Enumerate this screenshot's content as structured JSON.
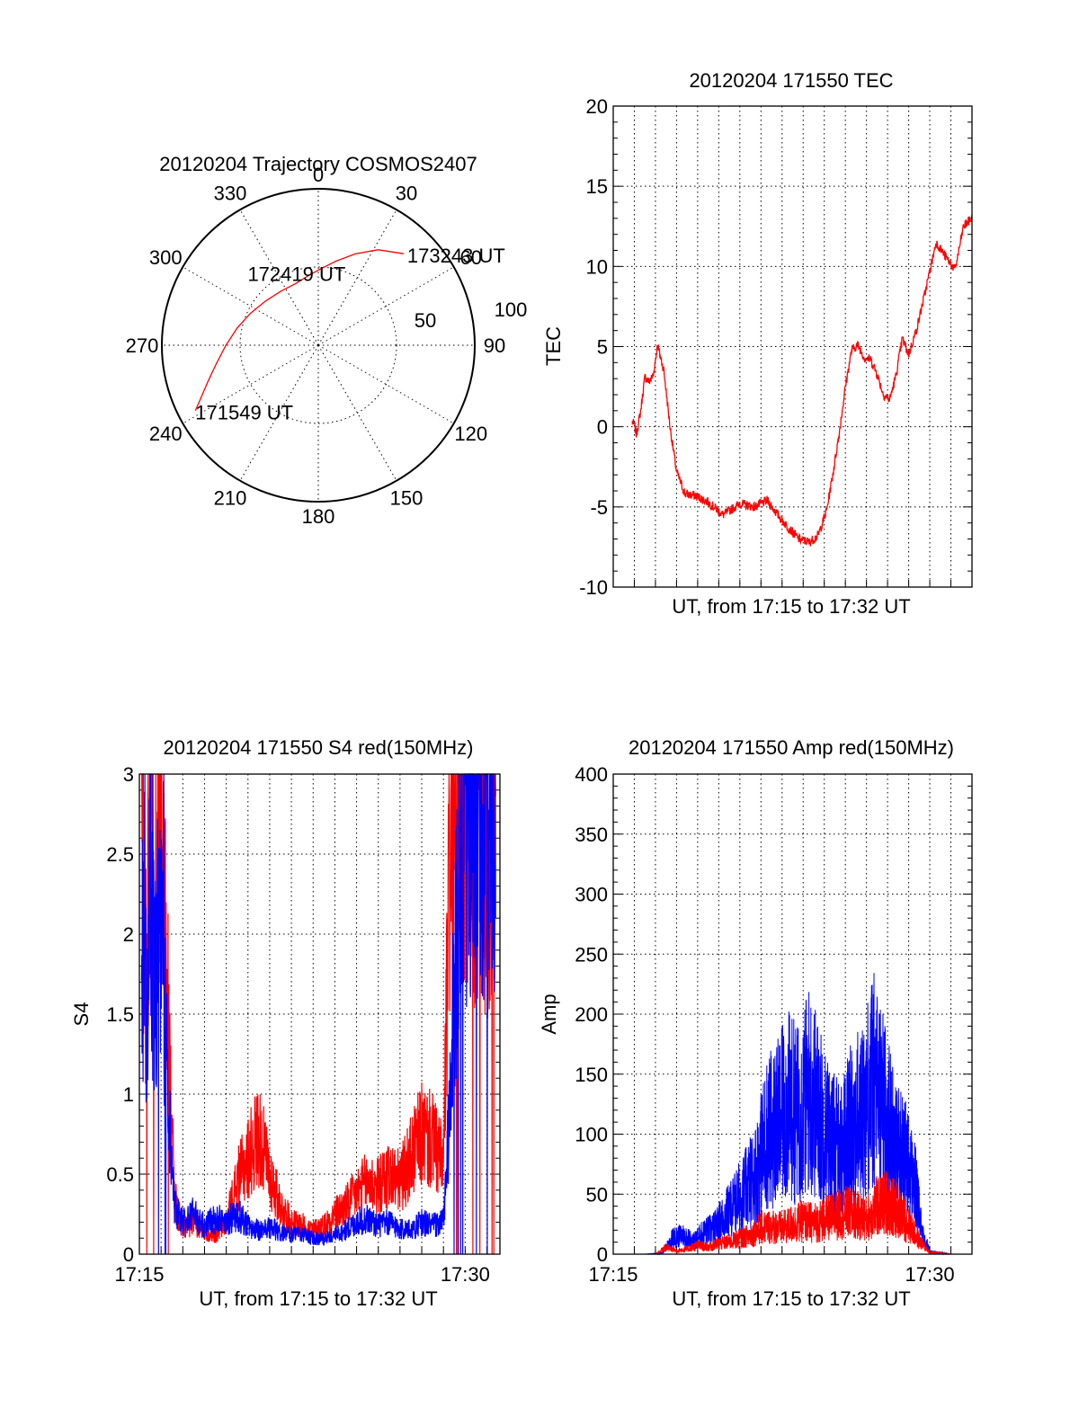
{
  "colors": {
    "red": "#ff0000",
    "blue": "#0000ff",
    "axis": "#000000"
  },
  "chart_data": [
    {
      "id": "trajectory",
      "type": "polar",
      "title": "20120204 Trajectory COSMOS2407",
      "azimuth_labels": [
        "0",
        "30",
        "60",
        "90",
        "120",
        "150",
        "180",
        "210",
        "240",
        "270",
        "300",
        "330"
      ],
      "radial_labels": [
        "50",
        "100"
      ],
      "radial_range": [
        0,
        100
      ],
      "grid": true,
      "trajectory": {
        "color": "#ff0000",
        "azimuth_deg": [
          242,
          246,
          252,
          260,
          270,
          282,
          295,
          310,
          325,
          340,
          352,
          2,
          12,
          22,
          32,
          43
        ],
        "radial": [
          89,
          82,
          74,
          66,
          59,
          53,
          48,
          44,
          42,
          42,
          45,
          49,
          55,
          63,
          72,
          80
        ]
      },
      "annotations": [
        {
          "text": "173243 UT",
          "azimuth_deg": 43,
          "radial": 80
        },
        {
          "text": "172419 UT",
          "azimuth_deg": 337,
          "radial": 42
        },
        {
          "text": "171549 UT",
          "azimuth_deg": 242,
          "radial": 89
        }
      ]
    },
    {
      "id": "tec",
      "type": "line",
      "title": "20120204 171550 TEC",
      "xlabel": "UT, from 17:15 to 17:32 UT",
      "ylabel": "TEC",
      "ylim": [
        -10,
        20
      ],
      "yticks": [
        -10,
        -5,
        0,
        5,
        10,
        15,
        20
      ],
      "xlim_minutes": [
        17.0,
        34.0
      ],
      "grid": true,
      "series": [
        {
          "color": "#ff0000",
          "x": [
            17.9,
            18.0,
            18.1,
            18.3,
            18.5,
            18.7,
            18.9,
            19.1,
            19.4,
            19.7,
            20.0,
            20.4,
            20.9,
            21.5,
            22.2,
            23.0,
            23.7,
            24.3,
            24.8,
            25.3,
            25.8,
            26.3,
            26.7,
            27.1,
            27.4,
            27.7,
            28.0,
            28.3,
            28.6,
            28.9,
            29.2,
            29.5,
            29.8,
            30.1,
            30.4,
            30.7,
            31.0,
            31.4,
            31.8,
            32.3,
            32.8,
            33.2,
            33.6,
            34.0
          ],
          "y": [
            0.3,
            0.1,
            -0.5,
            1.0,
            3.1,
            2.8,
            3.2,
            5.1,
            3.5,
            -0.1,
            -2.8,
            -4.2,
            -4.3,
            -4.7,
            -5.5,
            -4.8,
            -5.0,
            -4.6,
            -5.5,
            -6.3,
            -7.0,
            -7.2,
            -6.8,
            -5.3,
            -3.0,
            -0.5,
            2.5,
            4.8,
            5.1,
            4.3,
            4.2,
            3.3,
            2.0,
            1.7,
            3.2,
            5.5,
            4.5,
            6.2,
            8.5,
            11.5,
            10.5,
            9.8,
            12.5,
            13.0
          ]
        }
      ]
    },
    {
      "id": "s4",
      "type": "line",
      "title": "20120204 171550 S4 red(150MHz)",
      "xlabel": "UT, from 17:15 to 17:32 UT",
      "ylabel": "S4",
      "ylim": [
        0,
        3
      ],
      "yticks": [
        0,
        0.5,
        1,
        1.5,
        2,
        2.5,
        3
      ],
      "xlim_minutes": [
        15,
        31.6
      ],
      "xtick_labels": [
        {
          "minute": 15,
          "label": "17:15"
        },
        {
          "minute": 30,
          "label": "17:30"
        }
      ],
      "grid": true,
      "series": [
        {
          "color": "#ff0000",
          "x": [
            15.1,
            15.3,
            15.5,
            15.7,
            15.9,
            16.1,
            16.3,
            16.6,
            17.0,
            17.5,
            18.0,
            18.5,
            19.0,
            19.5,
            20.0,
            20.5,
            21.0,
            21.5,
            22.0,
            22.5,
            23.0,
            23.5,
            24.0,
            24.5,
            25.0,
            25.5,
            26.0,
            26.5,
            27.0,
            27.5,
            28.0,
            28.5,
            29.0,
            29.3,
            29.6,
            29.9,
            30.2,
            30.5,
            30.8,
            31.1,
            31.4
          ],
          "y": [
            3.0,
            1.8,
            3.0,
            1.5,
            3.0,
            2.4,
            1.6,
            0.35,
            0.16,
            0.2,
            0.15,
            0.12,
            0.2,
            0.45,
            0.6,
            0.75,
            0.5,
            0.3,
            0.2,
            0.18,
            0.15,
            0.18,
            0.25,
            0.3,
            0.38,
            0.45,
            0.42,
            0.5,
            0.45,
            0.6,
            0.75,
            0.7,
            0.55,
            2.5,
            3.0,
            2.8,
            3.0,
            2.5,
            3.0,
            2.2,
            3.0
          ]
        },
        {
          "color": "#0000ff",
          "x": [
            15.1,
            15.3,
            15.5,
            15.7,
            15.9,
            16.1,
            16.3,
            16.6,
            17.0,
            17.5,
            18.0,
            18.5,
            19.0,
            19.5,
            20.0,
            20.5,
            21.0,
            21.5,
            22.0,
            22.5,
            23.0,
            23.5,
            24.0,
            24.5,
            25.0,
            25.5,
            26.0,
            26.5,
            27.0,
            27.5,
            28.0,
            28.5,
            29.0,
            29.3,
            29.6,
            29.9,
            30.2,
            30.5,
            30.8,
            31.1,
            31.4
          ],
          "y": [
            1.9,
            1.5,
            2.4,
            1.6,
            2.1,
            1.7,
            1.1,
            0.3,
            0.2,
            0.25,
            0.18,
            0.22,
            0.2,
            0.25,
            0.18,
            0.15,
            0.16,
            0.14,
            0.12,
            0.12,
            0.1,
            0.1,
            0.12,
            0.15,
            0.2,
            0.22,
            0.18,
            0.2,
            0.16,
            0.15,
            0.2,
            0.18,
            0.2,
            0.9,
            2.0,
            3.0,
            2.6,
            3.0,
            2.7,
            3.0,
            2.9
          ]
        }
      ]
    },
    {
      "id": "amp",
      "type": "area",
      "title": "20120204 171550 Amp red(150MHz)",
      "xlabel": "UT, from 17:15 to 17:32 UT",
      "ylabel": "Amp",
      "ylim": [
        0,
        400
      ],
      "yticks": [
        0,
        50,
        100,
        150,
        200,
        250,
        300,
        350,
        400
      ],
      "xlim_minutes": [
        15,
        32
      ],
      "xtick_labels": [
        {
          "minute": 15,
          "label": "17:15"
        },
        {
          "minute": 30,
          "label": "17:30"
        }
      ],
      "grid": true,
      "series": [
        {
          "color": "#0000ff",
          "x": [
            15.0,
            16.5,
            17.3,
            17.8,
            18.3,
            18.8,
            19.3,
            19.8,
            20.3,
            20.8,
            21.3,
            21.8,
            22.3,
            22.8,
            23.3,
            23.8,
            24.3,
            24.8,
            25.3,
            25.8,
            26.3,
            26.8,
            27.3,
            27.8,
            28.3,
            28.8,
            29.3,
            29.6,
            30.0,
            31.0,
            32.0
          ],
          "y": [
            0,
            0,
            1,
            18,
            22,
            15,
            25,
            30,
            45,
            60,
            75,
            95,
            140,
            150,
            170,
            160,
            190,
            160,
            130,
            120,
            150,
            160,
            200,
            170,
            130,
            110,
            80,
            30,
            3,
            0,
            0
          ]
        },
        {
          "color": "#ff0000",
          "x": [
            15.0,
            17.0,
            17.5,
            18.0,
            18.5,
            19.0,
            19.5,
            20.0,
            20.5,
            21.0,
            21.5,
            22.0,
            22.5,
            23.0,
            23.5,
            24.0,
            24.5,
            25.0,
            25.5,
            26.0,
            26.5,
            27.0,
            27.5,
            28.0,
            28.5,
            29.0,
            29.5,
            30.0,
            31.0,
            32.0
          ],
          "y": [
            0,
            0,
            8,
            4,
            6,
            10,
            8,
            12,
            14,
            18,
            22,
            30,
            32,
            30,
            35,
            38,
            36,
            40,
            44,
            48,
            45,
            40,
            55,
            60,
            48,
            35,
            15,
            2,
            0,
            0
          ]
        }
      ]
    }
  ]
}
